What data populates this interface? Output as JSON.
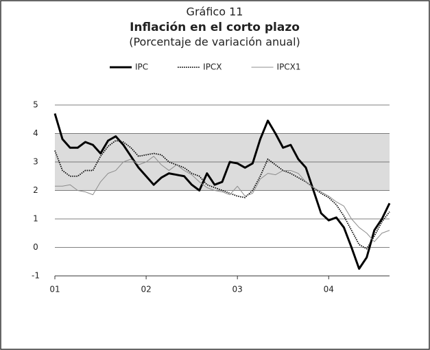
{
  "chart_data": {
    "type": "line",
    "title": "Gráfico 11",
    "subtitle": "Inflación en el corto plazo",
    "note": "(Porcentaje de variación anual)",
    "xlim": [
      0,
      44
    ],
    "xticks": [
      {
        "value": 0,
        "label": "01"
      },
      {
        "value": 12,
        "label": "02"
      },
      {
        "value": 24,
        "label": "03"
      },
      {
        "value": 36,
        "label": "04"
      }
    ],
    "ylim": [
      -1,
      5
    ],
    "yticks": [
      -1,
      0,
      1,
      2,
      3,
      4,
      5
    ],
    "grid": true,
    "shaded_range": [
      2,
      4
    ],
    "shaded_color": "#dcdcdc",
    "legend": "top",
    "x": [
      0,
      1,
      2,
      3,
      4,
      5,
      6,
      7,
      8,
      9,
      10,
      11,
      12,
      13,
      14,
      15,
      16,
      17,
      18,
      19,
      20,
      21,
      22,
      23,
      24,
      25,
      26,
      27,
      28,
      29,
      30,
      31,
      32,
      33,
      34,
      35,
      36,
      37,
      38,
      39,
      40,
      41,
      42,
      43,
      44
    ],
    "series": [
      {
        "name": "IPC",
        "color": "#000000",
        "line_style": "thick",
        "values": [
          4.7,
          3.8,
          3.5,
          3.5,
          3.7,
          3.6,
          3.3,
          3.75,
          3.9,
          3.6,
          3.2,
          2.8,
          2.5,
          2.2,
          2.45,
          2.6,
          2.55,
          2.5,
          2.2,
          2.0,
          2.6,
          2.2,
          2.3,
          3.0,
          2.95,
          2.8,
          2.95,
          3.8,
          4.45,
          4.0,
          3.5,
          3.6,
          3.1,
          2.8,
          2.0,
          1.2,
          0.95,
          1.05,
          0.7,
          0.0,
          -0.75,
          -0.35,
          0.6,
          1.0,
          1.55
        ]
      },
      {
        "name": "IPCX",
        "color": "#000000",
        "line_style": "dotted",
        "values": [
          3.4,
          2.7,
          2.5,
          2.5,
          2.7,
          2.7,
          3.2,
          3.55,
          3.75,
          3.7,
          3.5,
          3.2,
          3.25,
          3.3,
          3.25,
          3.0,
          2.9,
          2.8,
          2.6,
          2.5,
          2.2,
          2.1,
          2.0,
          1.9,
          1.8,
          1.75,
          2.0,
          2.5,
          3.1,
          2.9,
          2.7,
          2.6,
          2.45,
          2.3,
          2.1,
          1.9,
          1.75,
          1.5,
          1.1,
          0.6,
          0.1,
          -0.05,
          0.4,
          0.9,
          1.25
        ]
      },
      {
        "name": "IPCX1",
        "color": "#8c8c8c",
        "line_style": "thin",
        "values": [
          2.15,
          2.15,
          2.2,
          2.0,
          1.95,
          1.85,
          2.3,
          2.6,
          2.7,
          3.0,
          3.1,
          2.9,
          3.0,
          3.2,
          2.9,
          2.7,
          2.9,
          2.7,
          2.55,
          2.3,
          2.1,
          2.0,
          1.95,
          1.85,
          2.15,
          1.8,
          1.9,
          2.4,
          2.6,
          2.55,
          2.7,
          2.7,
          2.6,
          2.3,
          2.1,
          1.95,
          1.8,
          1.6,
          1.45,
          1.0,
          0.7,
          0.5,
          0.2,
          0.5,
          0.6
        ]
      }
    ]
  }
}
